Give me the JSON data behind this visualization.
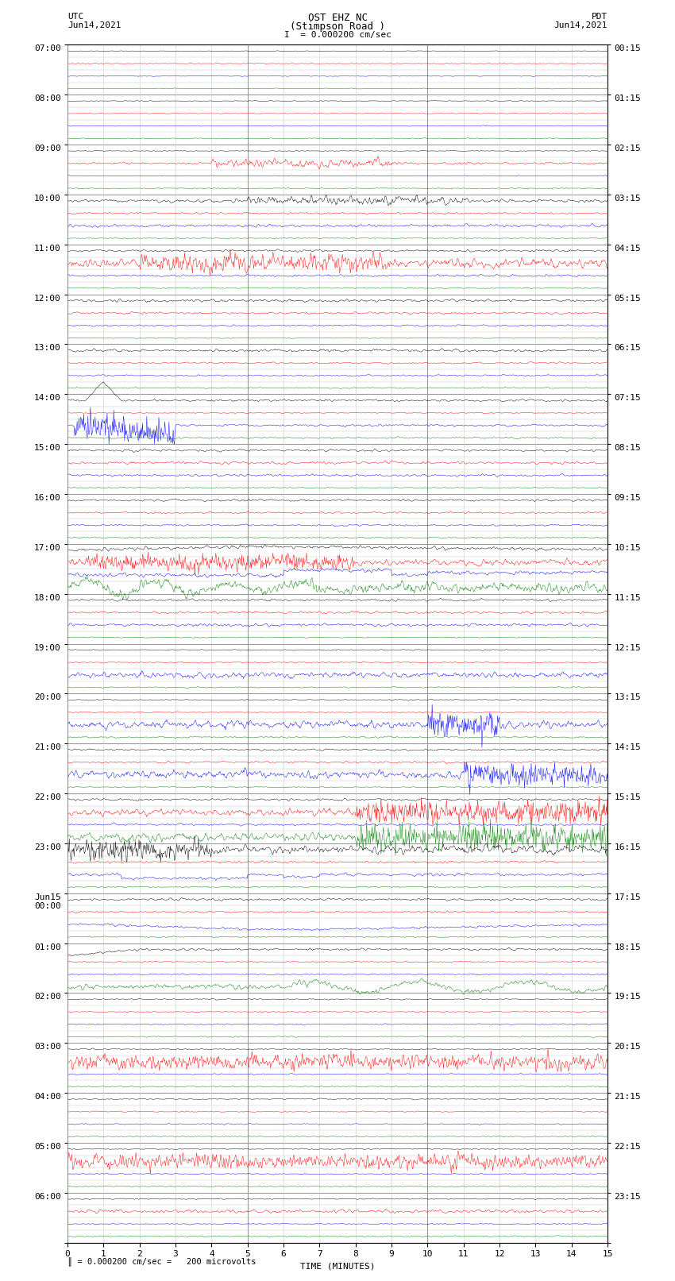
{
  "title_line1": "OST EHZ NC",
  "title_line2": "(Stimpson Road )",
  "scale_line": "I  = 0.000200 cm/sec",
  "left_label_top": "UTC",
  "left_label_date": "Jun14,2021",
  "right_label_top": "PDT",
  "right_label_date": "Jun14,2021",
  "bottom_label": "TIME (MINUTES)",
  "scale_label": "= 0.000200 cm/sec =   200 microvolts",
  "utc_times": [
    "07:00",
    "08:00",
    "09:00",
    "10:00",
    "11:00",
    "12:00",
    "13:00",
    "14:00",
    "15:00",
    "16:00",
    "17:00",
    "18:00",
    "19:00",
    "20:00",
    "21:00",
    "22:00",
    "23:00",
    "Jun15\n00:00",
    "01:00",
    "02:00",
    "03:00",
    "04:00",
    "05:00",
    "06:00"
  ],
  "pdt_times": [
    "00:15",
    "01:15",
    "02:15",
    "03:15",
    "04:15",
    "05:15",
    "06:15",
    "07:15",
    "08:15",
    "09:15",
    "10:15",
    "11:15",
    "12:15",
    "13:15",
    "14:15",
    "15:15",
    "16:15",
    "17:15",
    "18:15",
    "19:15",
    "20:15",
    "21:15",
    "22:15",
    "23:15"
  ],
  "n_hours": 24,
  "traces_per_hour": 4,
  "n_minutes": 15,
  "bg_color": "#ffffff",
  "grid_color_minor": "#cccccc",
  "grid_color_major": "#999999",
  "trace_colors_cycle": [
    "black",
    "red",
    "blue",
    "green"
  ],
  "title_fontsize": 9,
  "axis_fontsize": 8,
  "tick_fontsize": 8
}
